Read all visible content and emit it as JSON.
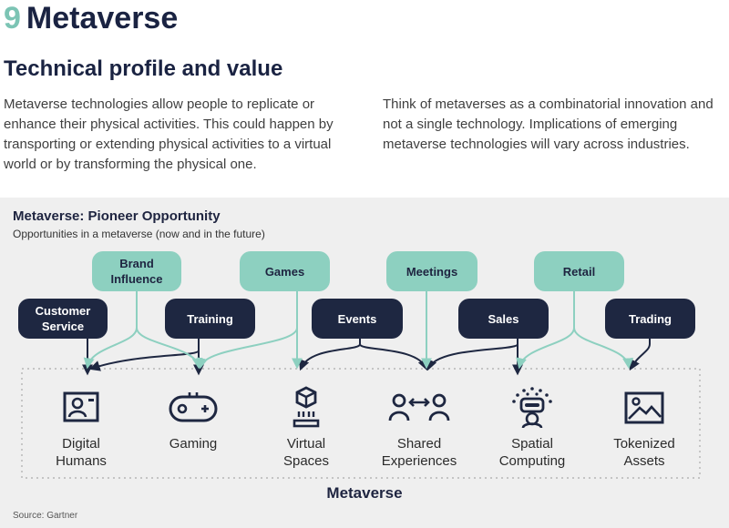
{
  "header": {
    "chapter_number": "9",
    "chapter_title": "Metaverse",
    "subtitle": "Technical profile and value",
    "paragraph_left": "Metaverse technologies allow people to replicate or enhance their physical activities. This could happen by transporting or extending physical activities to a virtual world or by transforming the physical one.",
    "paragraph_right": "Think of metaverses as a combinatorial innovation and not a single technology. Implications of emerging metaverse technologies will vary across industries."
  },
  "figure": {
    "title": "Metaverse: Pioneer Opportunity",
    "subtitle": "Opportunities in a metaverse (now and in the future)",
    "opportunities_teal": [
      "Brand Influence",
      "Games",
      "Meetings",
      "Retail"
    ],
    "opportunities_navy": [
      "Customer Service",
      "Training",
      "Events",
      "Sales",
      "Trading"
    ],
    "technologies": [
      {
        "name": "Digital Humans",
        "icon": "digital-humans-icon"
      },
      {
        "name": "Gaming",
        "icon": "gamepad-icon"
      },
      {
        "name": "Virtual Spaces",
        "icon": "virtual-spaces-icon"
      },
      {
        "name": "Shared Experiences",
        "icon": "shared-experiences-icon"
      },
      {
        "name": "Spatial Computing",
        "icon": "spatial-computing-icon"
      },
      {
        "name": "Tokenized Assets",
        "icon": "image-asset-icon"
      }
    ],
    "group_label": "Metaverse",
    "source": "Source: Gartner"
  },
  "colors": {
    "navy": "#1e2741",
    "teal": "#8dd0c0",
    "chapter_number": "#7cc4b4",
    "panel_bg": "#efefef"
  }
}
